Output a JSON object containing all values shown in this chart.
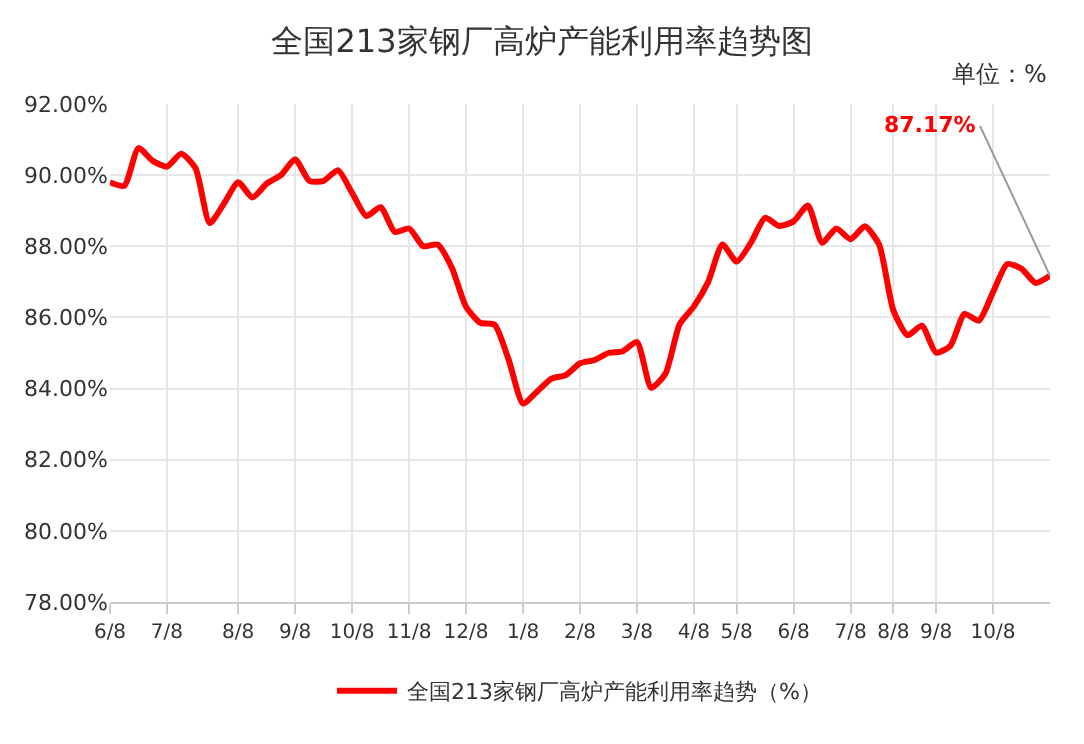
{
  "chart_data": {
    "type": "line",
    "title": "全国213家钢厂高炉产能利用率趋势图",
    "annotations": [
      "单位：%"
    ],
    "categories": [
      "6/8",
      null,
      null,
      null,
      "7/8",
      null,
      null,
      null,
      null,
      "8/8",
      null,
      null,
      null,
      "9/8",
      null,
      null,
      null,
      "10/8",
      null,
      null,
      null,
      "11/8",
      null,
      null,
      null,
      "12/8",
      null,
      null,
      null,
      "1/8",
      null,
      null,
      null,
      "2/8",
      null,
      null,
      null,
      "3/8",
      null,
      null,
      null,
      "4/8",
      null,
      null,
      "5/8",
      null,
      null,
      null,
      "6/8",
      null,
      null,
      null,
      "7/8",
      null,
      null,
      "8/8",
      null,
      null,
      "9/8",
      null,
      null,
      null,
      "10/8",
      null,
      null,
      null,
      null
    ],
    "series": [
      {
        "name": "全国213家钢厂高炉产能利用率趋势（%）",
        "color": "#ff0000",
        "values": [
          89.8,
          89.7,
          90.76,
          90.4,
          90.24,
          90.6,
          90.2,
          88.65,
          89.2,
          89.8,
          89.37,
          89.76,
          90.0,
          90.44,
          89.84,
          89.84,
          90.14,
          89.5,
          88.85,
          89.1,
          88.4,
          88.5,
          88.0,
          88.05,
          87.4,
          86.3,
          85.85,
          85.8,
          84.8,
          83.58,
          83.92,
          84.28,
          84.38,
          84.71,
          84.8,
          85.0,
          85.05,
          85.31,
          84.02,
          84.42,
          85.81,
          86.31,
          87.0,
          88.05,
          87.57,
          88.1,
          88.8,
          88.57,
          88.7,
          89.15,
          88.1,
          88.5,
          88.2,
          88.56,
          88.05,
          86.2,
          85.5,
          85.77,
          85.01,
          85.2,
          86.1,
          85.91,
          86.71,
          87.5,
          87.37,
          86.97,
          87.17
        ],
        "value_labels": [
          null,
          null,
          null,
          null,
          null,
          null,
          null,
          null,
          null,
          null,
          null,
          null,
          null,
          null,
          null,
          null,
          null,
          null,
          null,
          null,
          null,
          null,
          null,
          null,
          null,
          null,
          null,
          null,
          null,
          null,
          null,
          null,
          null,
          null,
          null,
          null,
          null,
          null,
          null,
          null,
          null,
          null,
          null,
          null,
          null,
          null,
          null,
          null,
          null,
          null,
          null,
          null,
          null,
          null,
          null,
          null,
          null,
          null,
          null,
          null,
          null,
          null,
          null,
          null,
          null,
          null,
          "87.17%"
        ]
      }
    ],
    "ylim": [
      78,
      92
    ],
    "yticks": [
      {
        "value": 78,
        "label": "78.00%"
      },
      {
        "value": 80,
        "label": "80.00%"
      },
      {
        "value": 82,
        "label": "82.00%"
      },
      {
        "value": 84,
        "label": "84.00%"
      },
      {
        "value": 86,
        "label": "86.00%"
      },
      {
        "value": 88,
        "label": "88.00%"
      },
      {
        "value": 90,
        "label": "90.00%"
      },
      {
        "value": 92,
        "label": "92.00%"
      }
    ],
    "grid": true,
    "legend": "bottom",
    "marker": "none",
    "line_style": "solid"
  }
}
